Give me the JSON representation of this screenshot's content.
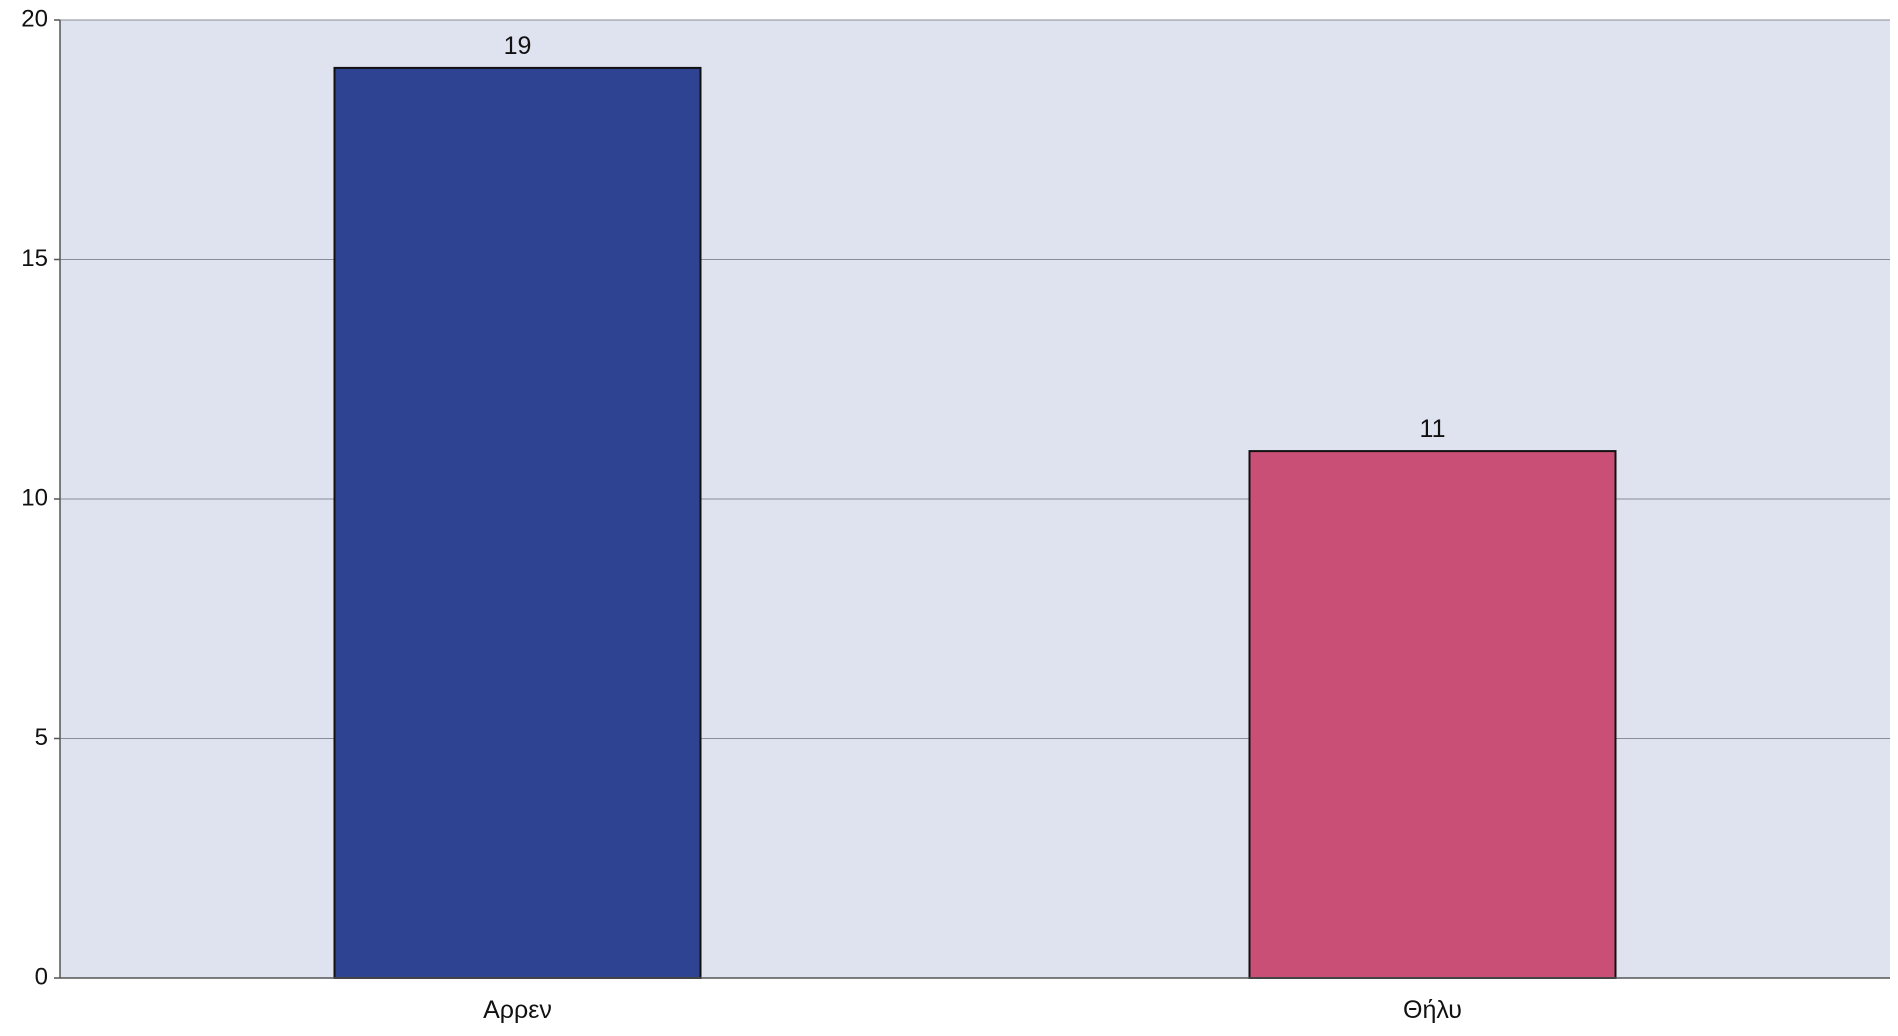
{
  "chart_data": {
    "type": "bar",
    "categories": [
      "Αρρεν",
      "Θήλυ"
    ],
    "values": [
      19,
      11
    ],
    "bar_colors": [
      "#2e4391",
      "#c94f77"
    ],
    "data_labels": [
      "19",
      "11"
    ],
    "title": "",
    "xlabel": "",
    "ylabel": "",
    "ylim": [
      0,
      20
    ],
    "yticks": [
      "0",
      "5",
      "10",
      "15",
      "20"
    ],
    "grid": true,
    "legend": "none",
    "plot_background": "#dfe3ef"
  }
}
